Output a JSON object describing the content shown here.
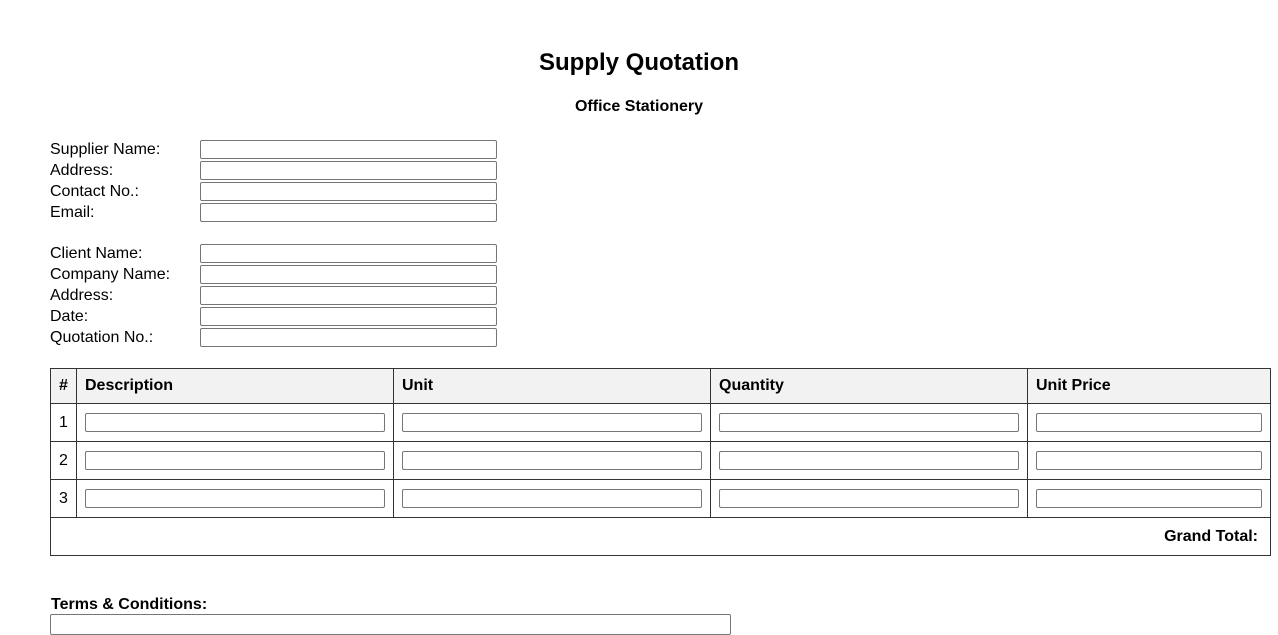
{
  "header": {
    "title": "Supply Quotation",
    "subtitle": "Office Stationery"
  },
  "supplier": {
    "fields": [
      {
        "label": "Supplier Name:",
        "value": ""
      },
      {
        "label": "Address:",
        "value": ""
      },
      {
        "label": "Contact No.:",
        "value": ""
      },
      {
        "label": "Email:",
        "value": ""
      }
    ]
  },
  "client": {
    "fields": [
      {
        "label": "Client Name:",
        "value": ""
      },
      {
        "label": "Company Name:",
        "value": ""
      },
      {
        "label": "Address:",
        "value": ""
      },
      {
        "label": "Date:",
        "value": ""
      },
      {
        "label": "Quotation No.:",
        "value": ""
      }
    ]
  },
  "table": {
    "headers": [
      "#",
      "Description",
      "Unit",
      "Quantity",
      "Unit Price"
    ],
    "rows": [
      {
        "num": "1"
      },
      {
        "num": "2"
      },
      {
        "num": "3"
      }
    ],
    "grand_total_label": "Grand Total:"
  },
  "terms": {
    "label": "Terms & Conditions:",
    "value": ""
  }
}
